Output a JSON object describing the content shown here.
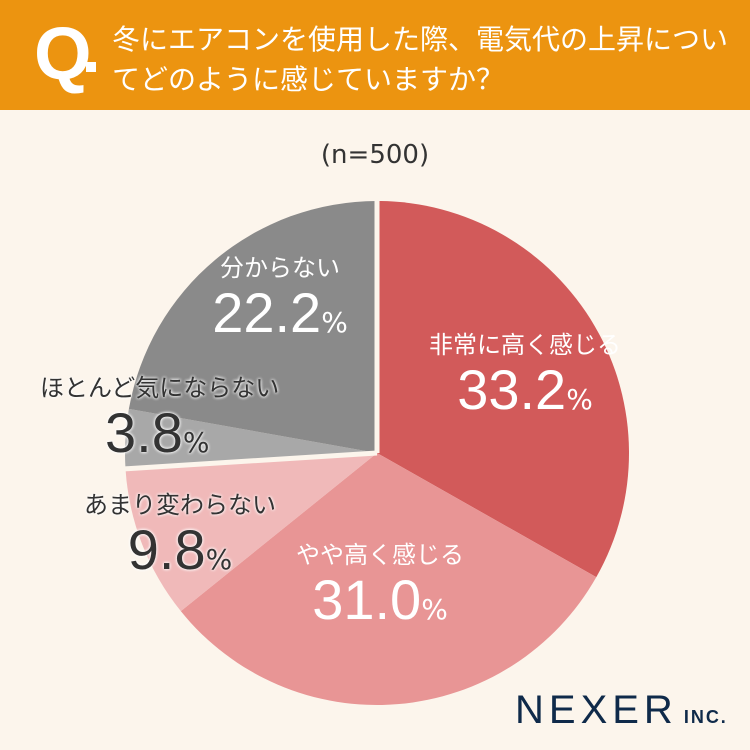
{
  "header": {
    "q": "Q",
    "title": "冬にエアコンを使用した際、電気代の上昇についてどのように感じていますか？"
  },
  "sample": "(n=500)",
  "brand": {
    "name": "NEXER",
    "suffix": "INC."
  },
  "chart_data": {
    "type": "pie",
    "title": "冬にエアコンを使用した際、電気代の上昇についてどのように感じていますか？",
    "subtitle": "(n=500)",
    "categories": [
      "非常に高く感じる",
      "やや高く感じる",
      "あまり変わらない",
      "ほとんど気にならない",
      "分からない"
    ],
    "values": [
      33.2,
      31.0,
      9.8,
      3.8,
      22.2
    ],
    "colors": [
      "#d25a5a",
      "#e89595",
      "#f0b9b9",
      "#a8a8a8",
      "#8a8a8a"
    ],
    "unit": "%"
  },
  "labels": [
    {
      "name": "非常に高く感じる",
      "val": "33.2",
      "pct": "%"
    },
    {
      "name": "やや高く感じる",
      "val": "31.0",
      "pct": "%"
    },
    {
      "name": "あまり変わらない",
      "val": "9.8",
      "pct": "%"
    },
    {
      "name": "ほとんど気にならない",
      "val": "3.8",
      "pct": "%"
    },
    {
      "name": "分からない",
      "val": "22.2",
      "pct": "%"
    }
  ]
}
